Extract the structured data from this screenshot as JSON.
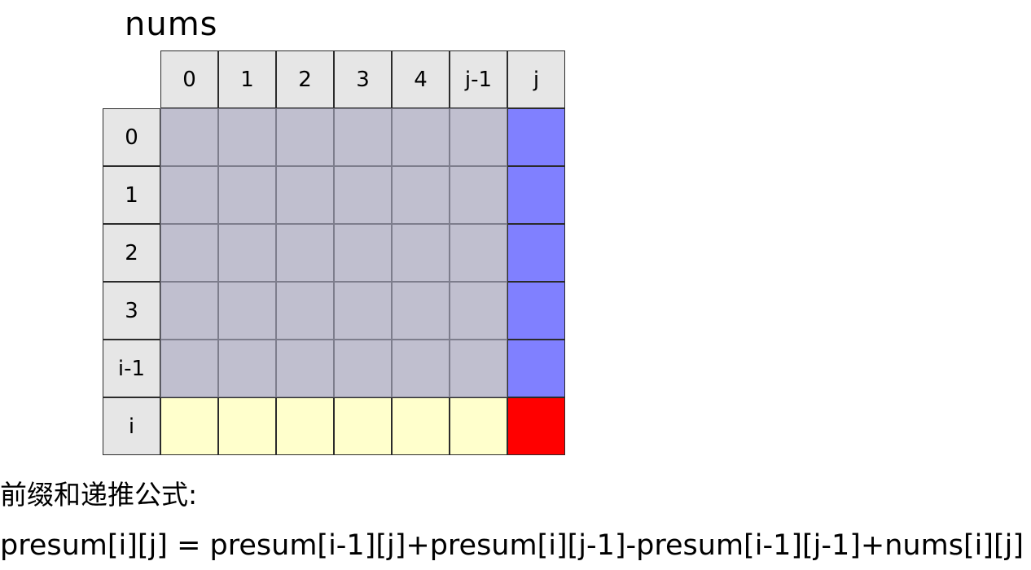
{
  "title": "nums",
  "grid": {
    "column_headers": [
      "0",
      "1",
      "2",
      "3",
      "4",
      "j-1",
      "j"
    ],
    "row_headers": [
      "0",
      "1",
      "2",
      "3",
      "i-1",
      "i"
    ],
    "colors": {
      "header": "#e6e6e6",
      "prior_block": "#c0bfcf",
      "column_j": "#8080ff",
      "row_i": "#ffffcc",
      "target_cell": "#ff0000"
    }
  },
  "formula_heading": "前缀和递推公式:",
  "formula": "presum[i][j] = presum[i-1][j]+presum[i][j-1]-presum[i-1][j-1]+nums[i][j]"
}
